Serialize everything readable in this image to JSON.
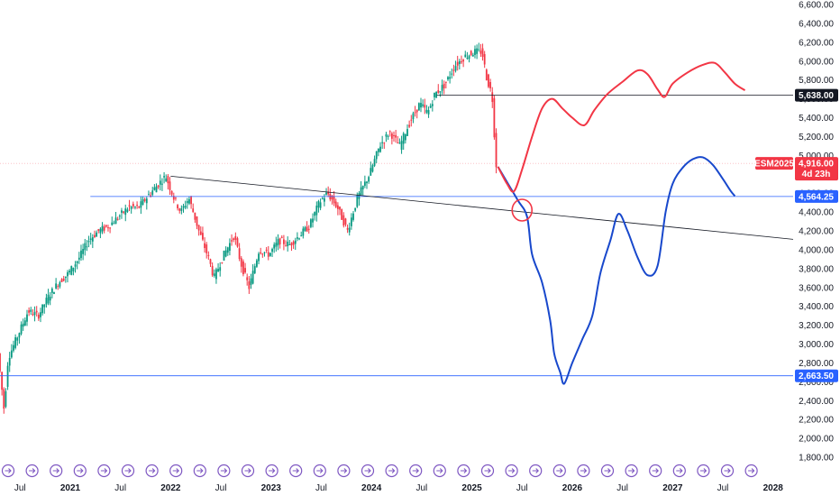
{
  "chart_data": {
    "type": "candlestick",
    "symbol_label": "ESM2025",
    "last_price_label": "4,916.00",
    "countdown_label": "4d 23h",
    "y_axis": {
      "range": [
        1800,
        6600
      ],
      "tick_labels": [
        "6,600.00",
        "6,400.00",
        "6,200.00",
        "6,000.00",
        "5,800.00",
        "5,600.00",
        "5,400.00",
        "5,200.00",
        "5,000.00",
        "4,800.00",
        "4,600.00",
        "4,400.00",
        "4,200.00",
        "4,000.00",
        "3,800.00",
        "3,600.00",
        "3,400.00",
        "3,200.00",
        "3,000.00",
        "2,800.00",
        "2,600.00",
        "2,400.00",
        "2,200.00",
        "2,000.00",
        "1,800.00"
      ],
      "tick_values": [
        6600,
        6400,
        6200,
        6000,
        5800,
        5600,
        5400,
        5200,
        5000,
        4800,
        4600,
        4400,
        4200,
        4000,
        3800,
        3600,
        3400,
        3200,
        3000,
        2800,
        2600,
        2400,
        2200,
        2000,
        1800
      ]
    },
    "x_axis": {
      "range": [
        2020.3,
        2028.2
      ],
      "tick_labels": [
        "Jul",
        "2021",
        "Jul",
        "2022",
        "Jul",
        "2023",
        "Jul",
        "2024",
        "Jul",
        "2025",
        "Jul",
        "2026",
        "Jul",
        "2027",
        "Jul",
        "2028"
      ],
      "tick_values": [
        2020.5,
        2021.0,
        2021.5,
        2022.0,
        2022.5,
        2023.0,
        2023.5,
        2024.0,
        2024.5,
        2025.0,
        2025.5,
        2026.0,
        2026.5,
        2027.0,
        2027.5,
        2028.0
      ]
    },
    "price_path": [
      [
        2020.3,
        2900
      ],
      [
        2020.36,
        2300
      ],
      [
        2020.4,
        2850
      ],
      [
        2020.5,
        3100
      ],
      [
        2020.6,
        3350
      ],
      [
        2020.7,
        3300
      ],
      [
        2020.8,
        3500
      ],
      [
        2020.9,
        3650
      ],
      [
        2021.0,
        3750
      ],
      [
        2021.1,
        3900
      ],
      [
        2021.2,
        4100
      ],
      [
        2021.3,
        4200
      ],
      [
        2021.4,
        4250
      ],
      [
        2021.5,
        4350
      ],
      [
        2021.6,
        4450
      ],
      [
        2021.7,
        4450
      ],
      [
        2021.8,
        4580
      ],
      [
        2021.9,
        4700
      ],
      [
        2021.97,
        4780
      ],
      [
        2022.05,
        4550
      ],
      [
        2022.12,
        4400
      ],
      [
        2022.2,
        4550
      ],
      [
        2022.3,
        4200
      ],
      [
        2022.4,
        3900
      ],
      [
        2022.45,
        3700
      ],
      [
        2022.55,
        3950
      ],
      [
        2022.65,
        4150
      ],
      [
        2022.72,
        3850
      ],
      [
        2022.8,
        3600
      ],
      [
        2022.9,
        4000
      ],
      [
        2023.0,
        3950
      ],
      [
        2023.1,
        4100
      ],
      [
        2023.2,
        4050
      ],
      [
        2023.3,
        4150
      ],
      [
        2023.4,
        4250
      ],
      [
        2023.5,
        4500
      ],
      [
        2023.58,
        4600
      ],
      [
        2023.68,
        4450
      ],
      [
        2023.78,
        4200
      ],
      [
        2023.88,
        4550
      ],
      [
        2024.0,
        4800
      ],
      [
        2024.1,
        5100
      ],
      [
        2024.2,
        5250
      ],
      [
        2024.3,
        5100
      ],
      [
        2024.4,
        5350
      ],
      [
        2024.5,
        5550
      ],
      [
        2024.58,
        5450
      ],
      [
        2024.65,
        5650
      ],
      [
        2024.75,
        5750
      ],
      [
        2024.85,
        5950
      ],
      [
        2024.95,
        6050
      ],
      [
        2025.05,
        6100
      ],
      [
        2025.12,
        6100
      ],
      [
        2025.17,
        5800
      ],
      [
        2025.22,
        5650
      ],
      [
        2025.26,
        4900
      ]
    ],
    "horizontal_levels": [
      {
        "value": 5638.0,
        "label": "5,638.00",
        "color": "#131722"
      },
      {
        "value": 4564.25,
        "label": "4,564.25",
        "color": "#2962ff"
      },
      {
        "value": 2663.5,
        "label": "2,663.50",
        "color": "#2962ff"
      }
    ],
    "trendline": {
      "points": [
        [
          2022.0,
          4780
        ],
        [
          2028.2,
          4110
        ]
      ],
      "color": "#131722"
    },
    "projection_red": {
      "color": "#f23645",
      "points": [
        [
          2025.26,
          4880
        ],
        [
          2025.35,
          4700
        ],
        [
          2025.42,
          4620
        ],
        [
          2025.5,
          4850
        ],
        [
          2025.6,
          5200
        ],
        [
          2025.7,
          5500
        ],
        [
          2025.8,
          5600
        ],
        [
          2025.9,
          5500
        ],
        [
          2026.0,
          5400
        ],
        [
          2026.12,
          5320
        ],
        [
          2026.22,
          5480
        ],
        [
          2026.35,
          5650
        ],
        [
          2026.5,
          5780
        ],
        [
          2026.65,
          5900
        ],
        [
          2026.75,
          5860
        ],
        [
          2026.85,
          5700
        ],
        [
          2026.92,
          5620
        ],
        [
          2027.0,
          5760
        ],
        [
          2027.15,
          5880
        ],
        [
          2027.3,
          5960
        ],
        [
          2027.42,
          5980
        ],
        [
          2027.52,
          5880
        ],
        [
          2027.62,
          5760
        ],
        [
          2027.72,
          5690
        ]
      ]
    },
    "projection_blue": {
      "color": "#1848cc",
      "points": [
        [
          2025.26,
          4880
        ],
        [
          2025.36,
          4700
        ],
        [
          2025.46,
          4520
        ],
        [
          2025.55,
          4350
        ],
        [
          2025.6,
          3950
        ],
        [
          2025.7,
          3650
        ],
        [
          2025.78,
          3250
        ],
        [
          2025.82,
          2900
        ],
        [
          2025.88,
          2700
        ],
        [
          2025.92,
          2580
        ],
        [
          2026.0,
          2800
        ],
        [
          2026.1,
          3050
        ],
        [
          2026.2,
          3300
        ],
        [
          2026.28,
          3750
        ],
        [
          2026.38,
          4100
        ],
        [
          2026.46,
          4380
        ],
        [
          2026.55,
          4200
        ],
        [
          2026.65,
          3920
        ],
        [
          2026.75,
          3730
        ],
        [
          2026.85,
          3830
        ],
        [
          2026.93,
          4400
        ],
        [
          2027.0,
          4700
        ],
        [
          2027.1,
          4870
        ],
        [
          2027.2,
          4960
        ],
        [
          2027.3,
          4980
        ],
        [
          2027.4,
          4900
        ],
        [
          2027.5,
          4750
        ],
        [
          2027.58,
          4620
        ],
        [
          2027.62,
          4570
        ]
      ]
    },
    "circle_marker": {
      "x": 2025.5,
      "y": 4420,
      "color": "#f23645"
    },
    "grid": false
  }
}
